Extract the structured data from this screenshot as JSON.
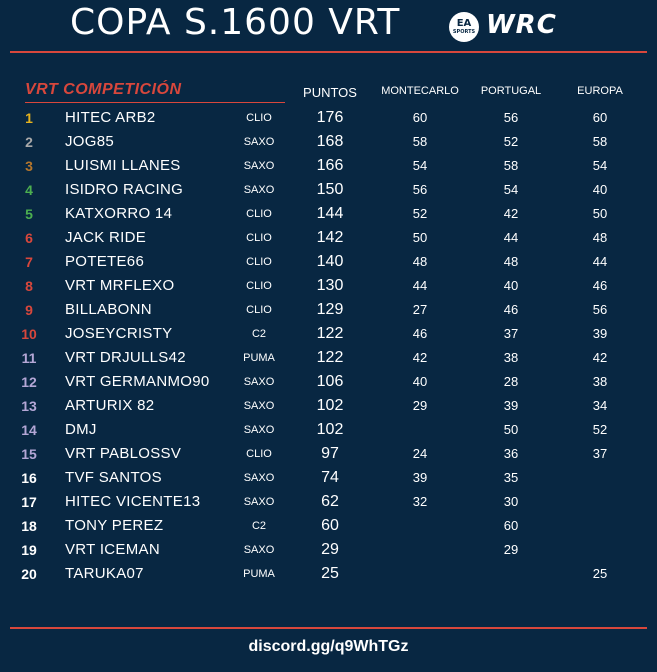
{
  "header": {
    "title": "COPA S.1600 VRT",
    "ea_logo_text": "EA",
    "ea_logo_sub": "SPORTS",
    "wrc_logo_text": "WRC"
  },
  "table": {
    "team_name": "VRT COMPETICIÓN",
    "columns": {
      "points": "PUNTOS",
      "round1": "MONTECARLO",
      "round2": "PORTUGAL",
      "round3": "EUROPA"
    },
    "rows": [
      {
        "pos": "1",
        "pos_color": "#e6b31e",
        "name": "HITEC ARB2",
        "car": "CLIO",
        "points": "176",
        "montecarlo": "60",
        "portugal": "56",
        "europa": "60"
      },
      {
        "pos": "2",
        "pos_color": "#a9a9a9",
        "name": "JOG85",
        "car": "SAXO",
        "points": "168",
        "montecarlo": "58",
        "portugal": "52",
        "europa": "58"
      },
      {
        "pos": "3",
        "pos_color": "#b5762c",
        "name": "LUISMI LLANES",
        "car": "SAXO",
        "points": "166",
        "montecarlo": "54",
        "portugal": "58",
        "europa": "54"
      },
      {
        "pos": "4",
        "pos_color": "#4caf50",
        "name": "ISIDRO RACING",
        "car": "SAXO",
        "points": "150",
        "montecarlo": "56",
        "portugal": "54",
        "europa": "40"
      },
      {
        "pos": "5",
        "pos_color": "#4caf50",
        "name": "KATXORRO 14",
        "car": "CLIO",
        "points": "144",
        "montecarlo": "52",
        "portugal": "42",
        "europa": "50"
      },
      {
        "pos": "6",
        "pos_color": "#d8473c",
        "name": "JACK RIDE",
        "car": "CLIO",
        "points": "142",
        "montecarlo": "50",
        "portugal": "44",
        "europa": "48"
      },
      {
        "pos": "7",
        "pos_color": "#d8473c",
        "name": "POTETE66",
        "car": "CLIO",
        "points": "140",
        "montecarlo": "48",
        "portugal": "48",
        "europa": "44"
      },
      {
        "pos": "8",
        "pos_color": "#d8473c",
        "name": "VRT MRFLEXO",
        "car": "CLIO",
        "points": "130",
        "montecarlo": "44",
        "portugal": "40",
        "europa": "46"
      },
      {
        "pos": "9",
        "pos_color": "#d8473c",
        "name": "BILLABONN",
        "car": "CLIO",
        "points": "129",
        "montecarlo": "27",
        "portugal": "46",
        "europa": "56"
      },
      {
        "pos": "10",
        "pos_color": "#d8473c",
        "name": "JOSEYCRISTY",
        "car": "C2",
        "points": "122",
        "montecarlo": "46",
        "portugal": "37",
        "europa": "39"
      },
      {
        "pos": "11",
        "pos_color": "#b4a7d6",
        "name": "VRT DRJULLS42",
        "car": "PUMA",
        "points": "122",
        "montecarlo": "42",
        "portugal": "38",
        "europa": "42"
      },
      {
        "pos": "12",
        "pos_color": "#b4a7d6",
        "name": "VRT GERMANMO90",
        "car": "SAXO",
        "points": "106",
        "montecarlo": "40",
        "portugal": "28",
        "europa": "38"
      },
      {
        "pos": "13",
        "pos_color": "#b4a7d6",
        "name": "ARTURIX 82",
        "car": "SAXO",
        "points": "102",
        "montecarlo": "29",
        "portugal": "39",
        "europa": "34"
      },
      {
        "pos": "14",
        "pos_color": "#b4a7d6",
        "name": "DMJ",
        "car": "SAXO",
        "points": "102",
        "montecarlo": "",
        "portugal": "50",
        "europa": "52"
      },
      {
        "pos": "15",
        "pos_color": "#b4a7d6",
        "name": "VRT PABLOSSV",
        "car": "CLIO",
        "points": "97",
        "montecarlo": "24",
        "portugal": "36",
        "europa": "37"
      },
      {
        "pos": "16",
        "pos_color": "#ffffff",
        "name": "TVF SANTOS",
        "car": "SAXO",
        "points": "74",
        "montecarlo": "39",
        "portugal": "35",
        "europa": ""
      },
      {
        "pos": "17",
        "pos_color": "#ffffff",
        "name": "HITEC VICENTE13",
        "car": "SAXO",
        "points": "62",
        "montecarlo": "32",
        "portugal": "30",
        "europa": ""
      },
      {
        "pos": "18",
        "pos_color": "#ffffff",
        "name": "TONY PEREZ",
        "car": "C2",
        "points": "60",
        "montecarlo": "",
        "portugal": "60",
        "europa": ""
      },
      {
        "pos": "19",
        "pos_color": "#ffffff",
        "name": "VRT ICEMAN",
        "car": "SAXO",
        "points": "29",
        "montecarlo": "",
        "portugal": "29",
        "europa": ""
      },
      {
        "pos": "20",
        "pos_color": "#ffffff",
        "name": "TARUKA07",
        "car": "PUMA",
        "points": "25",
        "montecarlo": "",
        "portugal": "",
        "europa": "25"
      }
    ]
  },
  "footer": {
    "discord_link": "discord.gg/q9WhTGz"
  }
}
